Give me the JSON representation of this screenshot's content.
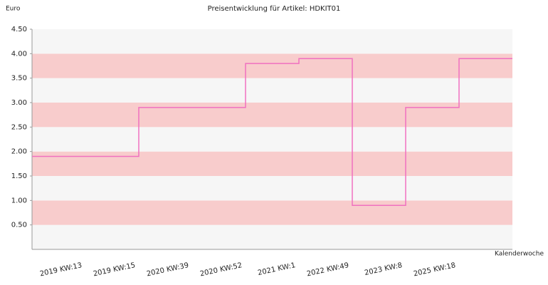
{
  "chart_data": {
    "type": "step",
    "title": "Preisentwicklung für Artikel: HDKIT01",
    "y_label": "Euro",
    "x_label": "Kalenderwoche",
    "categories": [
      "2019 KW:13",
      "2019 KW:15",
      "2020 KW:39",
      "2020 KW:52",
      "2021 KW:1",
      "2022 KW:49",
      "2023 KW:8",
      "2025 KW:18"
    ],
    "values": [
      1.9,
      2.9,
      2.9,
      3.8,
      3.9,
      0.9,
      2.9,
      3.9
    ],
    "color": "#f070c0",
    "band_colors": [
      "#f6f6f6",
      "#f8cccc"
    ],
    "ylim": [
      0,
      4.5
    ],
    "yticks": [
      {
        "value": 0.5,
        "label": "0.50"
      },
      {
        "value": 1,
        "label": "1.00"
      },
      {
        "value": 1.5,
        "label": "1.50"
      },
      {
        "value": 2,
        "label": "2.00"
      },
      {
        "value": 2.5,
        "label": "2.50"
      },
      {
        "value": 3,
        "label": "3.00"
      },
      {
        "value": 3.5,
        "label": "3.50"
      },
      {
        "value": 4,
        "label": "4.00"
      },
      {
        "value": 4.5,
        "label": "4.50"
      }
    ]
  }
}
